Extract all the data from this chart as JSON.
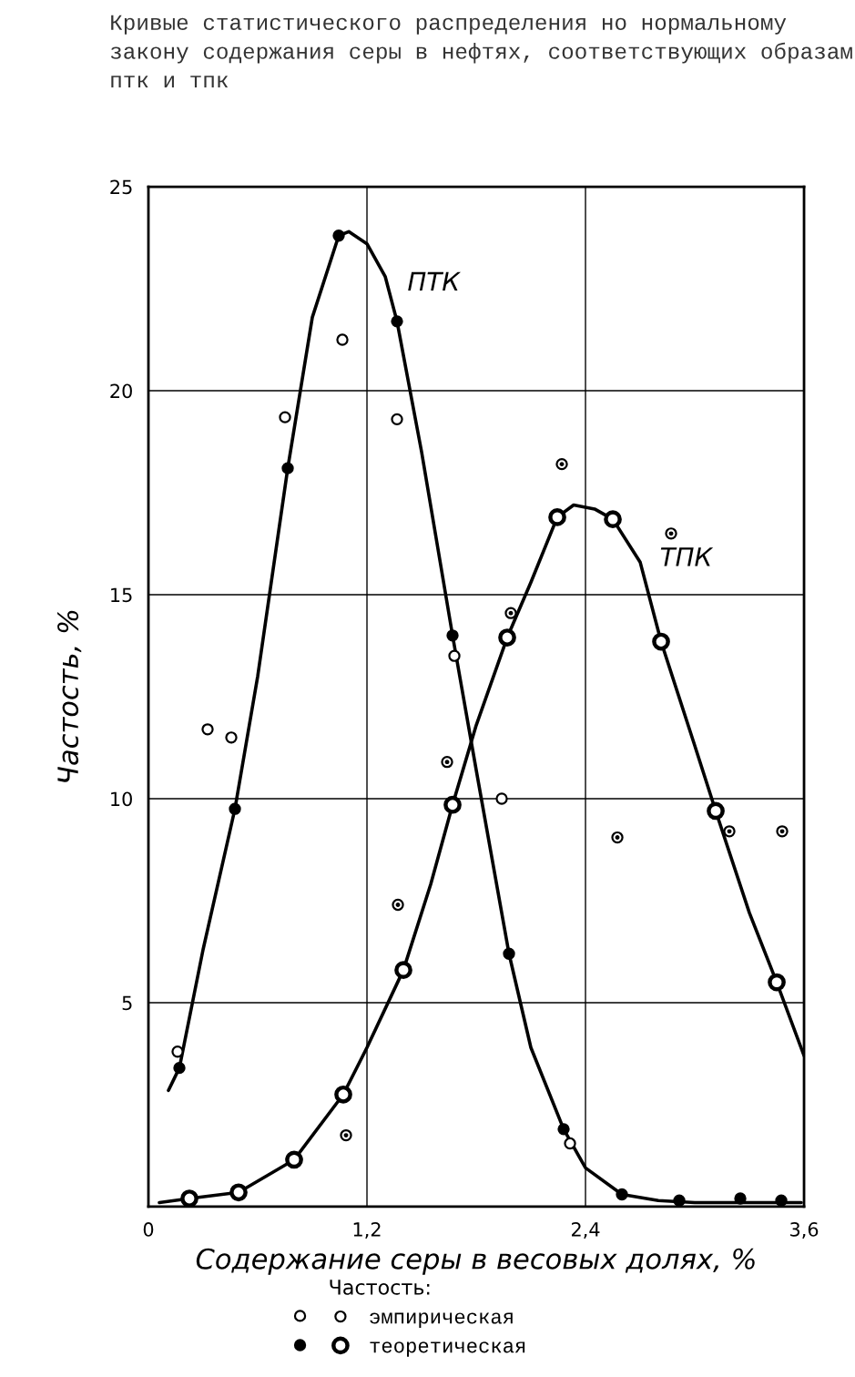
{
  "chart_data": {
    "type": "scatter",
    "title": "Кривые статистического распределения но нормальному закону содержания серы в нефтях, соответствующих образам птк и тпк",
    "xlabel": "Содержание серы в весовых долях, %",
    "ylabel": "Частость, %",
    "legend_title": "Частость:",
    "xlim": [
      0,
      3.6
    ],
    "ylim": [
      0,
      25
    ],
    "xticks": [
      0,
      {
        "value": 1.2,
        "label": "1,2"
      },
      {
        "value": 2.4,
        "label": "2,4"
      },
      {
        "value": 3.6,
        "label": "3,6"
      }
    ],
    "yticks": [
      5,
      10,
      15,
      20,
      25
    ],
    "grid": true,
    "legend": "bottom",
    "marker": "circle",
    "series": [
      {
        "color": "#ffffff",
        "x": [
          0.16,
          0.325,
          0.455,
          0.75,
          1.065,
          1.365,
          1.68,
          1.94,
          2.315
        ],
        "values": [
          3.8,
          11.7,
          11.5,
          19.35,
          21.25,
          19.3,
          13.5,
          10.0,
          1.55
        ]
      },
      {
        "color": "#000000",
        "x": [
          0.17,
          0.475,
          0.765,
          1.045,
          1.365,
          1.67,
          1.98,
          2.28,
          2.6,
          2.915,
          3.25,
          3.475
        ],
        "values": [
          3.4,
          9.75,
          18.1,
          23.8,
          21.7,
          14.0,
          6.2,
          1.9,
          0.3,
          0.15,
          0.2,
          0.15
        ]
      },
      {
        "name": "эмпирическая",
        "color": "#ffffff",
        "x": [
          1.085,
          1.37,
          1.64,
          1.99,
          2.27,
          2.575,
          2.87,
          3.19,
          3.48
        ],
        "values": [
          1.75,
          7.4,
          10.9,
          14.55,
          18.2,
          9.05,
          16.5,
          9.2,
          9.2
        ]
      },
      {
        "name": "теоретическая",
        "color": "#ffffff",
        "x": [
          0.225,
          0.495,
          0.8,
          1.07,
          1.4,
          1.67,
          1.97,
          2.245,
          2.55,
          2.815,
          3.115,
          3.45
        ],
        "values": [
          0.2,
          0.35,
          1.15,
          2.75,
          5.8,
          9.85,
          13.95,
          16.9,
          16.85,
          13.85,
          9.7,
          5.5
        ]
      },
      {
        "type": "line",
        "color": "#000000",
        "marker": "none",
        "line_style": "solid",
        "x": [
          0.11,
          0.17,
          0.3,
          0.475,
          0.6,
          0.765,
          0.9,
          1.045,
          1.1,
          1.2,
          1.3,
          1.365,
          1.5,
          1.67,
          1.8,
          1.98,
          2.1,
          2.28,
          2.4,
          2.6,
          2.8,
          3.0,
          3.3,
          3.585
        ],
        "values": [
          2.85,
          3.4,
          6.3,
          9.75,
          13.0,
          18.1,
          21.8,
          23.8,
          23.9,
          23.6,
          22.8,
          21.7,
          18.5,
          14.0,
          10.7,
          6.2,
          3.9,
          1.9,
          0.95,
          0.3,
          0.15,
          0.1,
          0.1,
          0.1
        ]
      },
      {
        "type": "line",
        "color": "#000000",
        "marker": "none",
        "line_style": "solid",
        "x": [
          0.06,
          0.225,
          0.495,
          0.8,
          1.07,
          1.2,
          1.4,
          1.55,
          1.67,
          1.8,
          1.97,
          2.1,
          2.245,
          2.335,
          2.45,
          2.55,
          2.7,
          2.815,
          3.0,
          3.115,
          3.3,
          3.45,
          3.6
        ],
        "values": [
          0.1,
          0.2,
          0.35,
          1.15,
          2.75,
          3.9,
          5.8,
          7.9,
          9.85,
          11.8,
          13.95,
          15.3,
          16.9,
          17.2,
          17.1,
          16.85,
          15.8,
          13.85,
          11.3,
          9.7,
          7.2,
          5.5,
          3.7
        ]
      }
    ],
    "annotations": [
      "ПТК",
      "ТПК"
    ]
  }
}
